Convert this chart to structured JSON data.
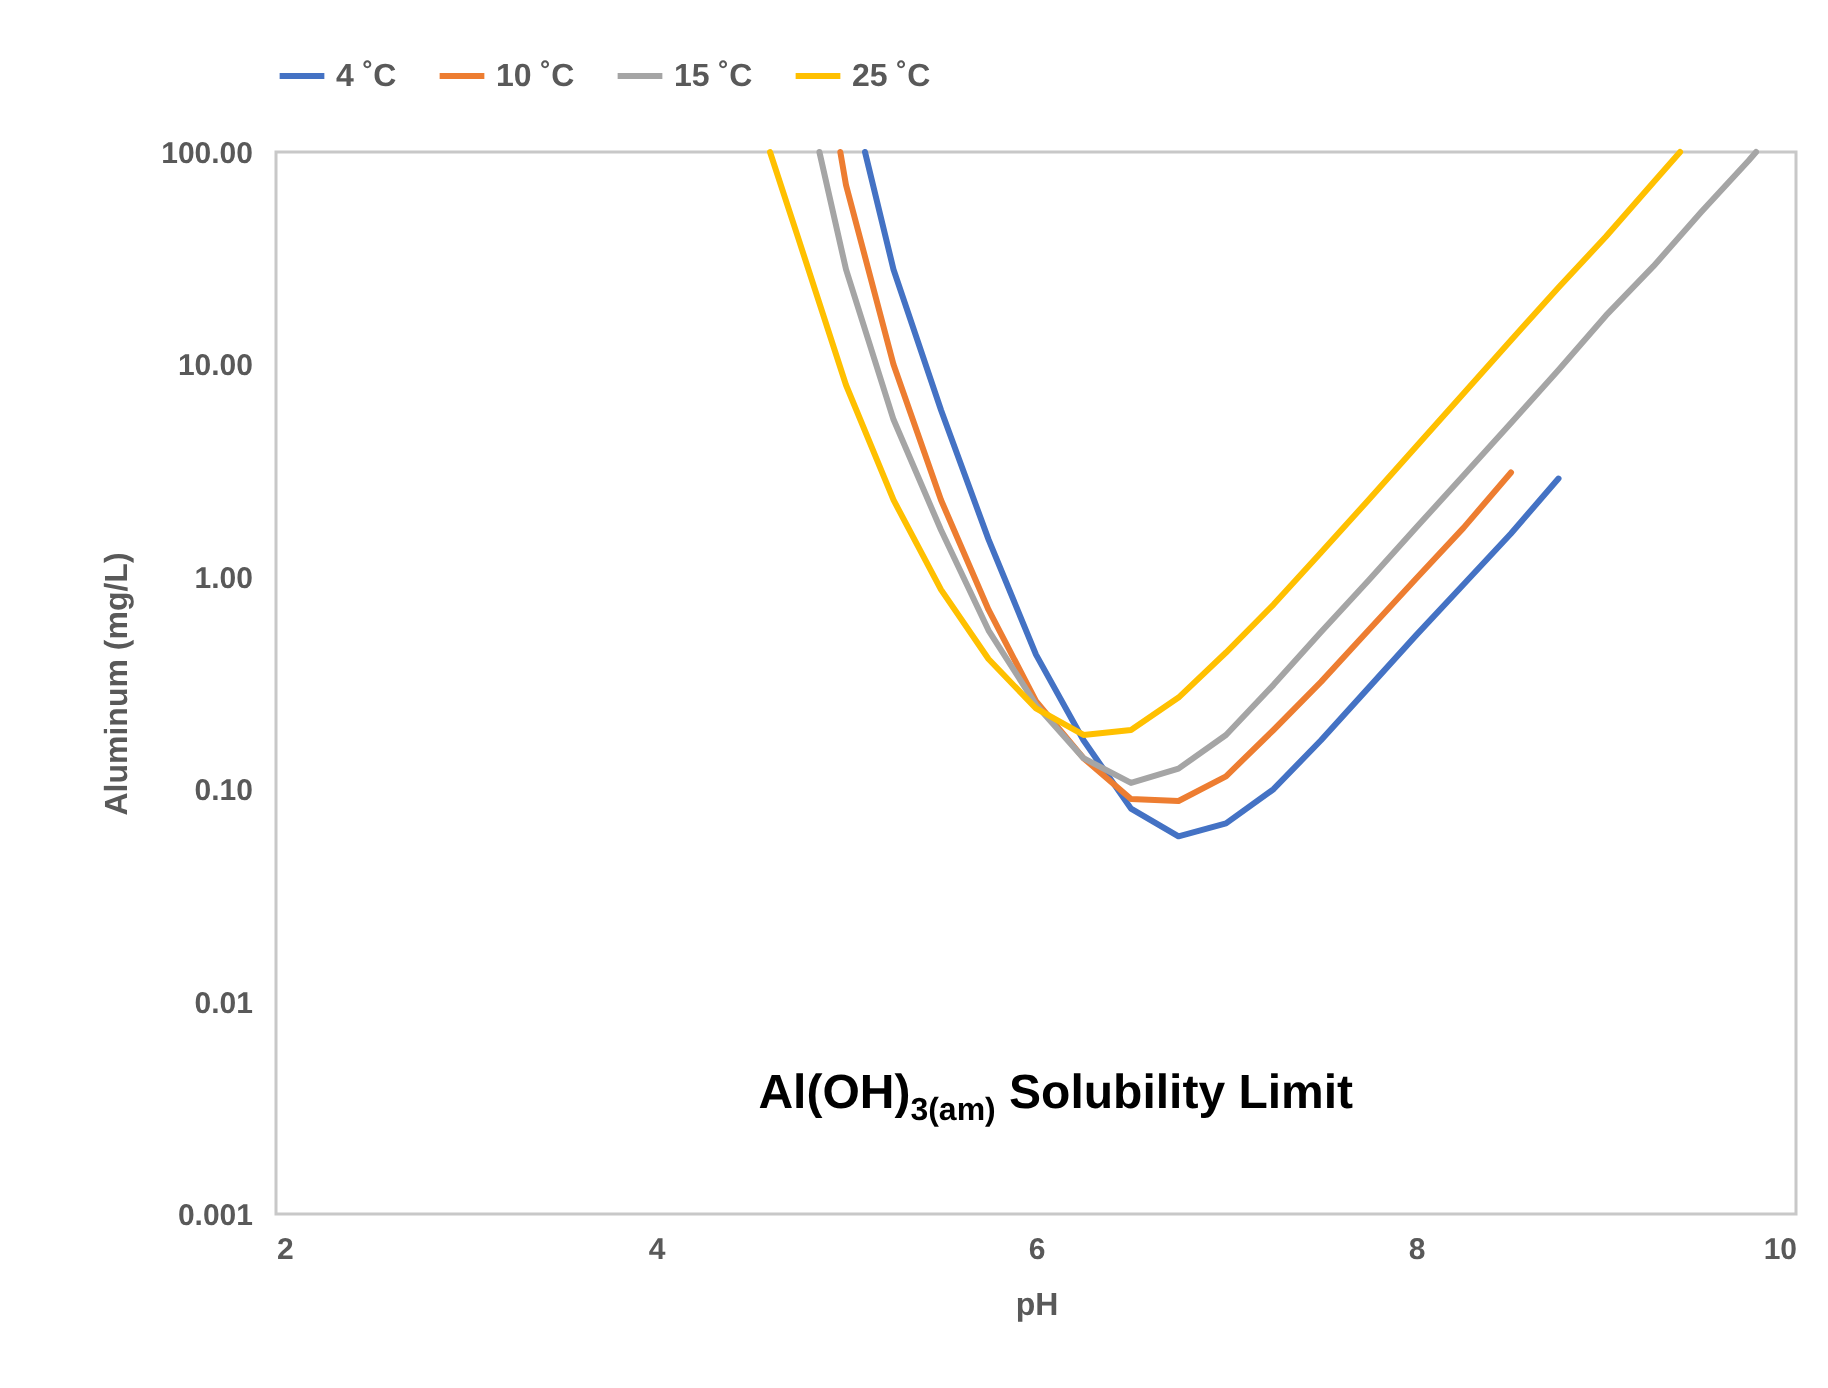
{
  "chart_data": {
    "type": "line",
    "xlabel": "pH",
    "ylabel": "Aluminum (mg/L)",
    "log": "y",
    "grid": false,
    "legend": "top",
    "line_style": "solid",
    "marker": "none",
    "annotations": [
      "Al(OH)$_{3(am)}$ Solubility Limit"
    ],
    "xlim": [
      2,
      10
    ],
    "xticks": [
      2,
      4,
      6,
      8,
      10
    ],
    "ylim": [
      0.001,
      100
    ],
    "yticks": [
      {
        "value": 0.001,
        "label": "0.001"
      },
      {
        "value": 0.01,
        "label": "0.01"
      },
      {
        "value": 0.1,
        "label": "0.10"
      },
      {
        "value": 1,
        "label": "1.00"
      },
      {
        "value": 10,
        "label": "10.00"
      },
      {
        "value": 100,
        "label": "100.00"
      }
    ],
    "series": [
      {
        "name": "4 ˚C",
        "color": "#4472c4",
        "x": [
          5.1,
          5.25,
          5.5,
          5.75,
          6,
          6.25,
          6.5,
          6.75,
          7,
          7.25,
          7.5,
          7.75,
          8,
          8.25,
          8.5,
          8.75
        ],
        "values": [
          100,
          28,
          6.1,
          1.5,
          0.43,
          0.17,
          0.081,
          0.06,
          0.069,
          0.1,
          0.17,
          0.3,
          0.53,
          0.92,
          1.6,
          2.9
        ]
      },
      {
        "name": "10 ˚C",
        "color": "#ed7d31",
        "x": [
          4.97,
          5,
          5.25,
          5.5,
          5.75,
          6,
          6.25,
          6.5,
          6.75,
          7,
          7.25,
          7.5,
          7.75,
          8,
          8.25,
          8.5
        ],
        "values": [
          100,
          70,
          10,
          2.3,
          0.7,
          0.26,
          0.14,
          0.09,
          0.088,
          0.115,
          0.19,
          0.32,
          0.56,
          0.98,
          1.7,
          3.1
        ]
      },
      {
        "name": "15 ˚C",
        "color": "#a5a5a5",
        "x": [
          4.86,
          5,
          5.25,
          5.5,
          5.75,
          6,
          6.25,
          6.5,
          6.75,
          7,
          7.25,
          7.5,
          7.75,
          8,
          8.25,
          8.5,
          8.75,
          9,
          9.25,
          9.5,
          9.75,
          9.79
        ],
        "values": [
          100,
          28,
          5.5,
          1.66,
          0.56,
          0.25,
          0.14,
          0.107,
          0.125,
          0.18,
          0.31,
          0.55,
          0.96,
          1.7,
          3,
          5.3,
          9.4,
          17,
          29,
          52,
          91,
          100
        ]
      },
      {
        "name": "25 ˚C",
        "color": "#ffc000",
        "x": [
          4.6,
          4.75,
          5,
          5.25,
          5.5,
          5.75,
          6,
          6.25,
          6.5,
          6.75,
          7,
          7.25,
          7.5,
          7.75,
          8,
          8.25,
          8.5,
          8.75,
          9,
          9.25,
          9.39
        ],
        "values": [
          100,
          39,
          8,
          2.3,
          0.87,
          0.41,
          0.24,
          0.18,
          0.19,
          0.27,
          0.44,
          0.74,
          1.3,
          2.3,
          4.1,
          7.3,
          13,
          23,
          40,
          72,
          100
        ]
      }
    ]
  }
}
